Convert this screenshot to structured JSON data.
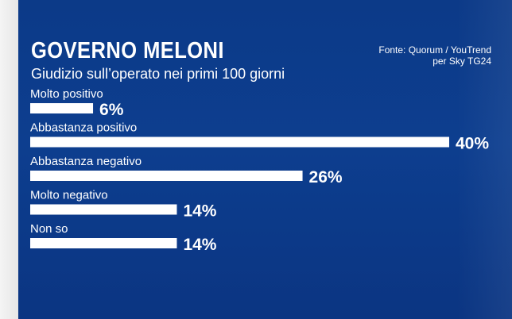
{
  "header": {
    "title": "GOVERNO MELONI",
    "subtitle": "Giudizio sull’operato nei primi 100 giorni",
    "source_line1": "Fonte: Quorum / YouTrend",
    "source_line2": "per Sky TG24"
  },
  "colors": {
    "background": "#0d3e8f",
    "bar": "#ffffff",
    "text": "#ffffff"
  },
  "chart_data": {
    "type": "bar",
    "orientation": "horizontal",
    "title": "GOVERNO MELONI",
    "subtitle": "Giudizio sull’operato nei primi 100 giorni",
    "categories": [
      "Molto positivo",
      "Abbastanza positivo",
      "Abbastanza negativo",
      "Molto negativo",
      "Non so"
    ],
    "values": [
      6,
      40,
      26,
      14,
      14
    ],
    "value_labels": [
      "6%",
      "40%",
      "26%",
      "14%",
      "14%"
    ],
    "unit": "%",
    "xlim": [
      0,
      40
    ],
    "grid": false,
    "legend": "none"
  }
}
